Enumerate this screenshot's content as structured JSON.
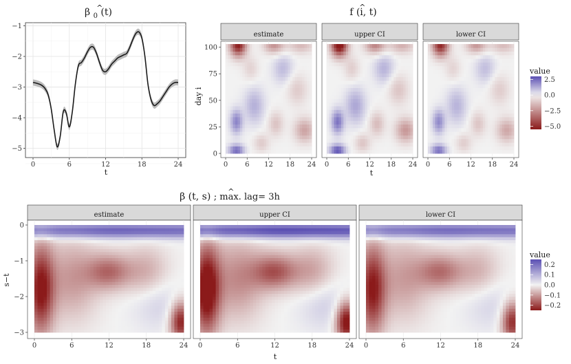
{
  "plots": {
    "beta0": {
      "title": "β̂₀(t)",
      "title_main": "β",
      "title_sub": "0",
      "title_arg": "(t)",
      "xlabel": "t",
      "xticks": [
        "0",
        "6",
        "12",
        "18",
        "24"
      ],
      "yticks": [
        "−1",
        "−2",
        "−3",
        "−4",
        "−5"
      ]
    },
    "f_it": {
      "title_main": "f",
      "title_arg": "(i, t)",
      "xlabel": "t",
      "ylabel": "day i",
      "xticks": [
        "0",
        "6",
        "12",
        "18",
        "24"
      ],
      "yticks": [
        "100",
        "75",
        "50",
        "25",
        "0"
      ],
      "panels": [
        "estimate",
        "upper CI",
        "lower CI"
      ],
      "legend_title": "value",
      "legend_ticks": [
        "2.5",
        "0.0",
        "−2.5",
        "−5.0"
      ]
    },
    "beta_ts": {
      "title_main": "β",
      "title_arg": "(t, s)",
      "title_suffix": "; max. lag= 3h",
      "xlabel": "t",
      "ylabel": "s−t",
      "xticks": [
        "0",
        "6",
        "12",
        "18",
        "24"
      ],
      "yticks": [
        "0",
        "−1",
        "−2",
        "−3"
      ],
      "panels": [
        "estimate",
        "upper CI",
        "lower CI"
      ],
      "legend_title": "value",
      "legend_ticks": [
        "0.2",
        "0.1",
        "0.0",
        "−0.1",
        "−0.2"
      ]
    }
  },
  "colors": {
    "high": "#5b4fb3",
    "mid": "#f2f2f2",
    "low": "#8b1a1a",
    "panel_bg": "#ebebeb",
    "strip_bg": "#d9d9d9",
    "line": "#1a1a1a",
    "band": "#aaaaaa"
  },
  "chart_data": [
    {
      "type": "line",
      "title": "β̂₀(t)",
      "xlabel": "t",
      "ylabel": "",
      "xlim": [
        0,
        24
      ],
      "ylim": [
        -5.3,
        -0.9
      ],
      "x": [
        0,
        0.5,
        1,
        1.5,
        2,
        2.5,
        3,
        3.5,
        4,
        4.5,
        5,
        5.5,
        6,
        6.5,
        7,
        7.5,
        8,
        8.5,
        9,
        9.5,
        10,
        10.5,
        11,
        11.5,
        12,
        12.5,
        13,
        13.5,
        14,
        14.5,
        15,
        15.5,
        16,
        16.5,
        17,
        17.5,
        18,
        18.5,
        19,
        19.5,
        20,
        20.5,
        21,
        21.5,
        22,
        22.5,
        23,
        23.5,
        24
      ],
      "y": [
        -2.85,
        -2.87,
        -2.9,
        -2.95,
        -3.05,
        -3.25,
        -3.7,
        -4.4,
        -4.95,
        -4.6,
        -3.8,
        -3.85,
        -4.3,
        -3.8,
        -2.9,
        -2.3,
        -2.2,
        -2.05,
        -1.85,
        -1.7,
        -1.7,
        -1.9,
        -2.2,
        -2.45,
        -2.5,
        -2.4,
        -2.25,
        -2.15,
        -2.05,
        -2.0,
        -1.95,
        -1.9,
        -1.7,
        -1.45,
        -1.25,
        -1.2,
        -1.4,
        -2.0,
        -2.9,
        -3.4,
        -3.6,
        -3.55,
        -3.45,
        -3.3,
        -3.15,
        -3.0,
        -2.9,
        -2.85,
        -2.85
      ],
      "band_halfwidth": 0.1
    },
    {
      "type": "heatmap",
      "title": "f̂(i, t)",
      "xlabel": "t",
      "ylabel": "day i",
      "xlim": [
        0,
        24
      ],
      "ylim": [
        0,
        103
      ],
      "panels": [
        "estimate",
        "upper CI",
        "lower CI"
      ],
      "color_range": [
        -5.5,
        3
      ],
      "features": [
        {
          "t": 3.5,
          "i": 103,
          "value": -5.5,
          "spread_t": 1.6,
          "spread_i": 8
        },
        {
          "t": 13.5,
          "i": 103,
          "value": -2.5,
          "spread_t": 2.0,
          "spread_i": 6
        },
        {
          "t": 21,
          "i": 103,
          "value": -1.5,
          "spread_t": 2.5,
          "spread_i": 6
        },
        {
          "t": 3,
          "i": 30,
          "value": 2.0,
          "spread_t": 1.2,
          "spread_i": 8
        },
        {
          "t": 3,
          "i": 3,
          "value": 2.5,
          "spread_t": 1.5,
          "spread_i": 4
        },
        {
          "t": 22,
          "i": 22,
          "value": -2.0,
          "spread_t": 2.0,
          "spread_i": 8
        },
        {
          "t": 20,
          "i": 60,
          "value": -1.0,
          "spread_t": 2.0,
          "spread_i": 10
        },
        {
          "t": 14,
          "i": 28,
          "value": -1.2,
          "spread_t": 1.5,
          "spread_i": 8
        },
        {
          "t": 8,
          "i": 45,
          "value": 1.2,
          "spread_t": 2.0,
          "spread_i": 12
        },
        {
          "t": 16,
          "i": 80,
          "value": 1.0,
          "spread_t": 2.0,
          "spread_i": 10
        },
        {
          "t": 7,
          "i": 80,
          "value": -0.8,
          "spread_t": 1.5,
          "spread_i": 8
        },
        {
          "t": 10,
          "i": 10,
          "value": -1.0,
          "spread_t": 1.5,
          "spread_i": 6
        }
      ]
    },
    {
      "type": "heatmap",
      "title": "β̂(t, s) ; max. lag= 3h",
      "xlabel": "t",
      "ylabel": "s−t",
      "xlim": [
        0,
        24
      ],
      "ylim": [
        -3,
        0
      ],
      "panels": [
        "estimate",
        "upper CI",
        "lower CI"
      ],
      "color_range": [
        -0.25,
        0.25
      ],
      "features": [
        {
          "t": 12,
          "s_minus_t": -0.15,
          "value": 0.22,
          "spread_t": 30,
          "spread_s": 0.15
        },
        {
          "t": 1,
          "s_minus_t": -1.8,
          "value": -0.25,
          "spread_t": 1.5,
          "spread_s": 0.9
        },
        {
          "t": 12,
          "s_minus_t": -1.3,
          "value": -0.15,
          "spread_t": 2.5,
          "spread_s": 0.35
        },
        {
          "t": 23.5,
          "s_minus_t": -2.7,
          "value": -0.25,
          "spread_t": 1.2,
          "spread_s": 0.4
        },
        {
          "t": 20,
          "s_minus_t": -2.2,
          "value": 0.05,
          "spread_t": 3.0,
          "spread_s": 0.5
        },
        {
          "t": 6,
          "s_minus_t": -1.5,
          "value": -0.1,
          "spread_t": 3.0,
          "spread_s": 0.8
        },
        {
          "t": 18,
          "s_minus_t": -1.3,
          "value": -0.08,
          "spread_t": 2.5,
          "spread_s": 0.5
        }
      ]
    }
  ]
}
